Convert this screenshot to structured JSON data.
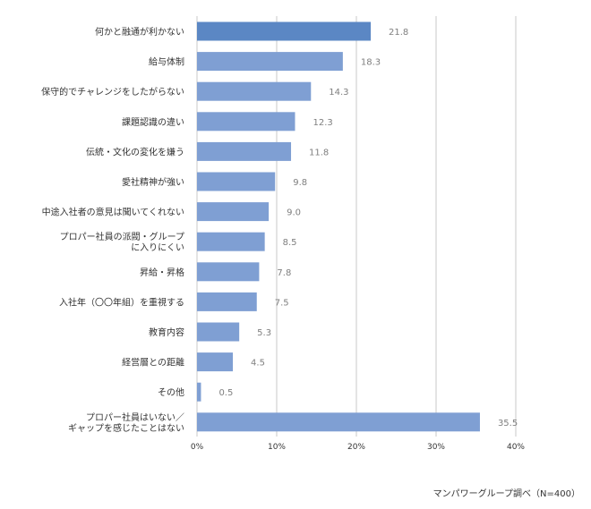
{
  "chart_data": {
    "type": "bar",
    "orientation": "horizontal",
    "categories": [
      [
        "何かと融通が利かない"
      ],
      [
        "給与体制"
      ],
      [
        "保守的でチャレンジをしたがらない"
      ],
      [
        "課題認識の違い"
      ],
      [
        "伝統・文化の変化を嫌う"
      ],
      [
        "愛社精神が強い"
      ],
      [
        "中途入社者の意見は聞いてくれない"
      ],
      [
        "プロパー社員の派閥・グループ",
        "に入りにくい"
      ],
      [
        "昇給・昇格"
      ],
      [
        "入社年（〇〇年組）を重視する"
      ],
      [
        "教育内容"
      ],
      [
        "経営層との距離"
      ],
      [
        "その他"
      ],
      [
        "プロパー社員はいない／",
        "ギャップを感じたことはない"
      ]
    ],
    "values": [
      21.8,
      18.3,
      14.3,
      12.3,
      11.8,
      9.8,
      9.0,
      8.5,
      7.8,
      7.5,
      5.3,
      4.5,
      0.5,
      35.5
    ],
    "value_labels": [
      "21.8",
      "18.3",
      "14.3",
      "12.3",
      "11.8",
      "9.8",
      "9.0",
      "8.5",
      "7.8",
      "7.5",
      "5.3",
      "4.5",
      "0.5",
      "35.5"
    ],
    "xlim": [
      0,
      40
    ],
    "ticks": [
      0,
      10,
      20,
      30,
      40
    ],
    "tick_labels": [
      "0%",
      "10%",
      "20%",
      "30%",
      "40%"
    ],
    "grid": true,
    "colors": {
      "bar": "#7f9fd3",
      "bar_highlight": "#5b87c4",
      "grid": "#c8c8c8",
      "value_text": "#7f7f7f"
    }
  },
  "source": "マンパワーグループ調べ（N=400）"
}
